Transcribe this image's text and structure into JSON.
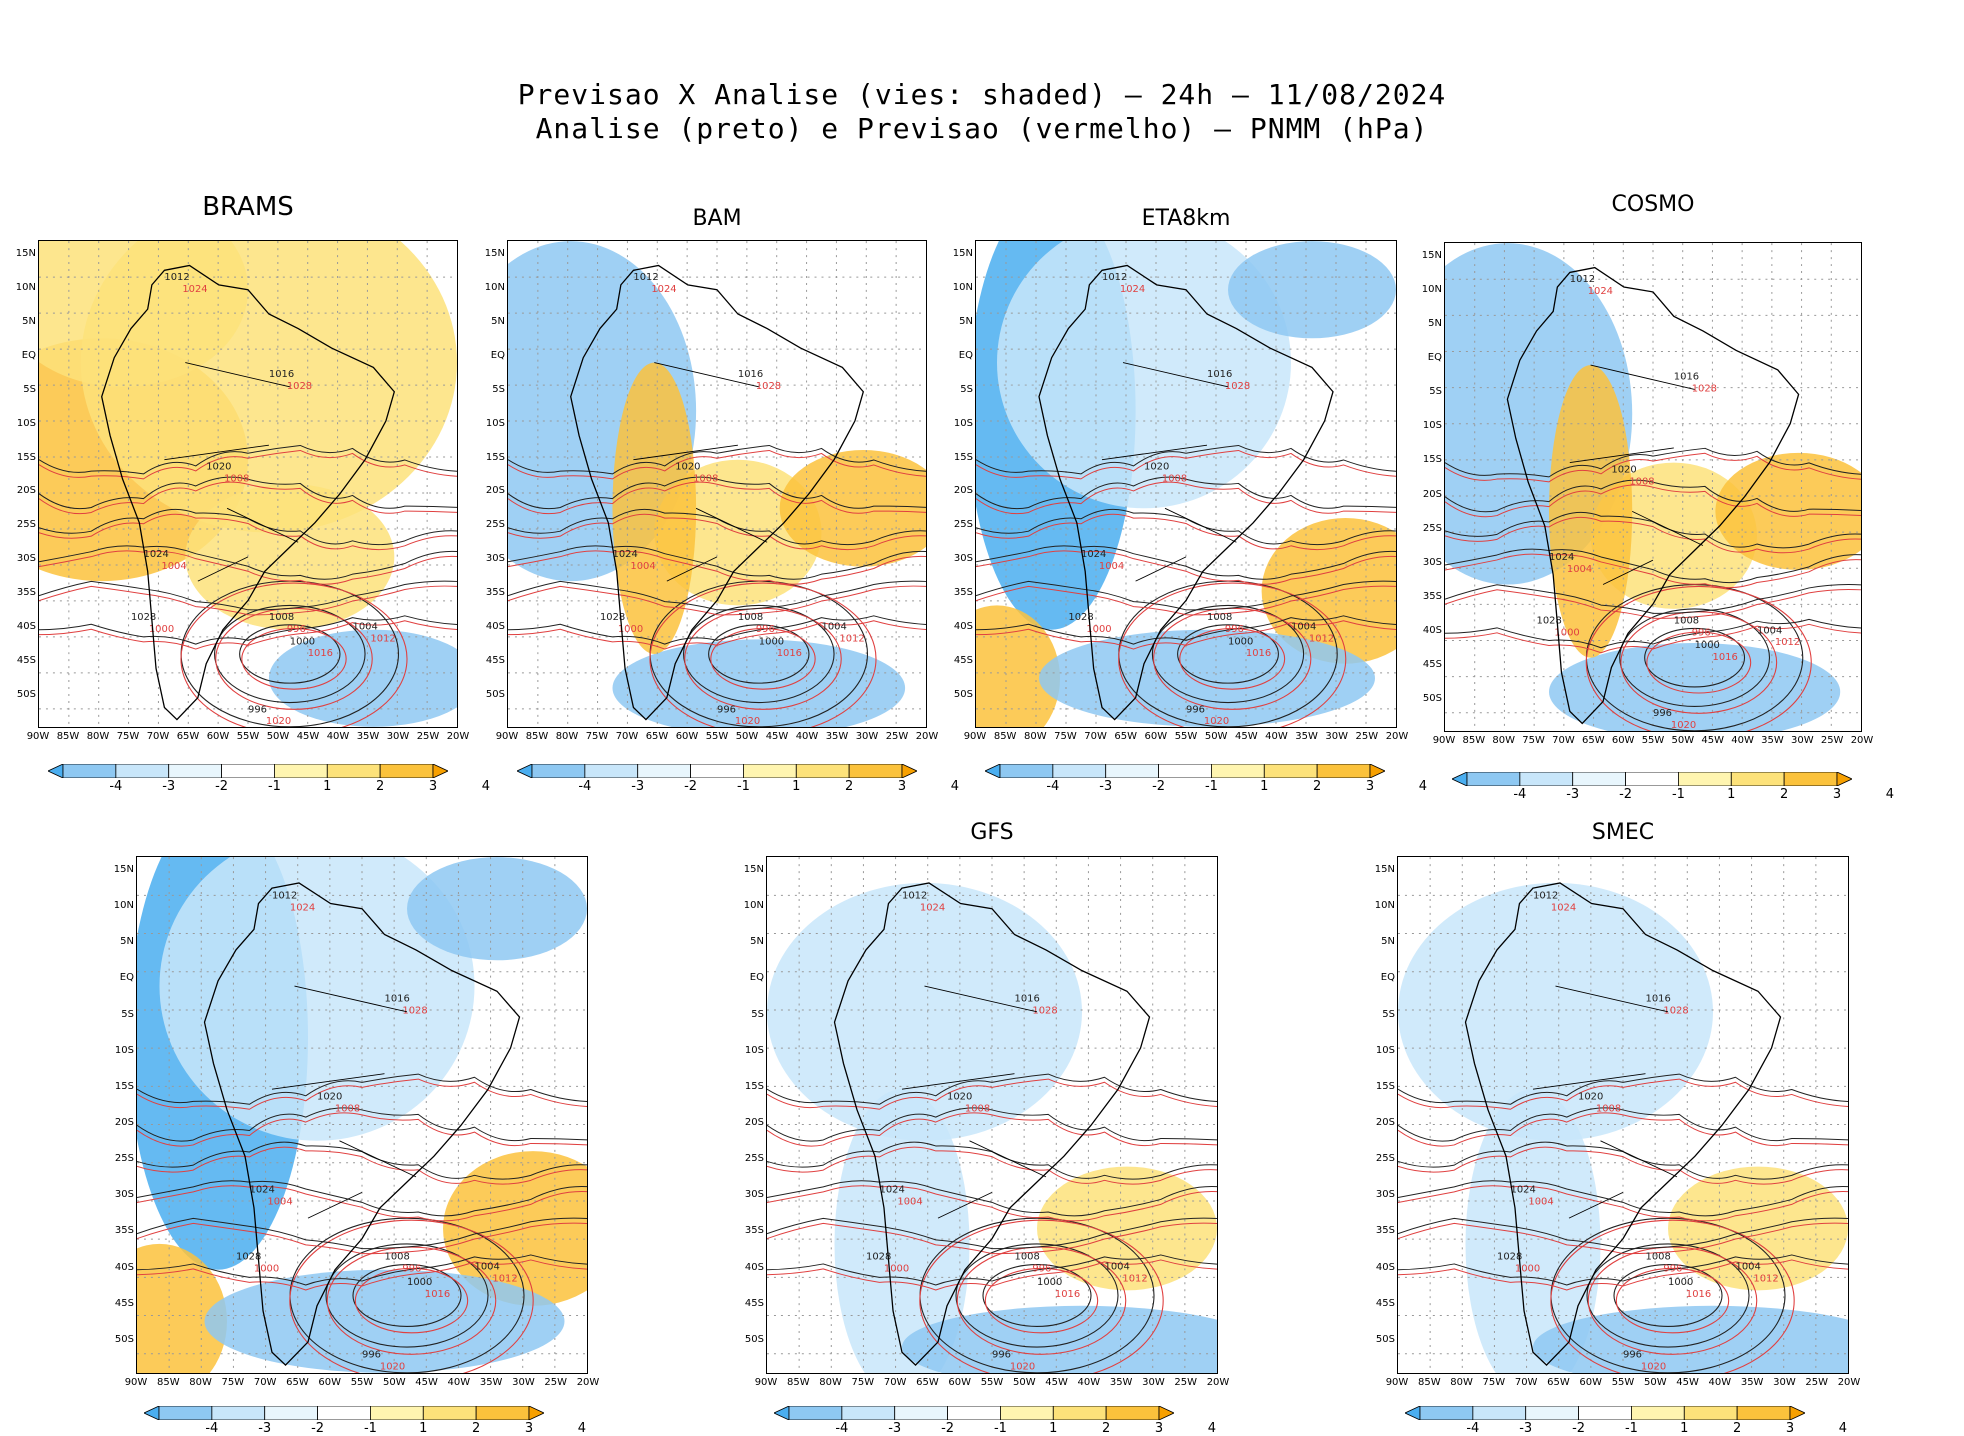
{
  "figure": {
    "title_line1": "Previsao X Analise (vies: shaded) – 24h – 11/08/2024",
    "title_line2": "Analise (preto) e Previsao (vermelho) – PNMM (hPa)"
  },
  "axes": {
    "lat_labels": [
      "15N",
      "10N",
      "5N",
      "EQ",
      "5S",
      "10S",
      "15S",
      "20S",
      "25S",
      "30S",
      "35S",
      "40S",
      "45S",
      "50S"
    ],
    "lon_labels": [
      "90W",
      "85W",
      "80W",
      "75W",
      "70W",
      "65W",
      "60W",
      "55W",
      "50W",
      "45W",
      "40W",
      "35W",
      "30W",
      "25W",
      "20W"
    ]
  },
  "colorbar": {
    "labels": [
      "-4",
      "-3",
      "-2",
      "-1",
      "1",
      "2",
      "3",
      "4"
    ],
    "colors": [
      "#4aaef0",
      "#8ec8f2",
      "#c8e6fa",
      "#e8f6fd",
      "#ffffff",
      "#fff5b0",
      "#fde27a",
      "#fbc23c",
      "#f7a000"
    ]
  },
  "colors": {
    "analysis": "#222222",
    "forecast": "#e04040",
    "warm": "#fbc23c",
    "cool": "#8ec8f2"
  },
  "panels": [
    {
      "name": "BRAMS",
      "label": "BRAMS",
      "bias": "warm"
    },
    {
      "name": "BAM",
      "label": "BAM",
      "bias": "mixed"
    },
    {
      "name": "ETA8km",
      "label": "ETA8km",
      "bias": "cool"
    },
    {
      "name": "COSMO",
      "label": "COSMO",
      "bias": "mixed"
    },
    {
      "name": "unlabeled",
      "label": "",
      "bias": "cool"
    },
    {
      "name": "GFS",
      "label": "GFS",
      "bias": "light"
    },
    {
      "name": "SMEC",
      "label": "SMEC",
      "bias": "light"
    }
  ],
  "isobar_labels": [
    "1012",
    "1016",
    "1020",
    "1024",
    "1028",
    "1008",
    "1004",
    "1000",
    "996"
  ]
}
